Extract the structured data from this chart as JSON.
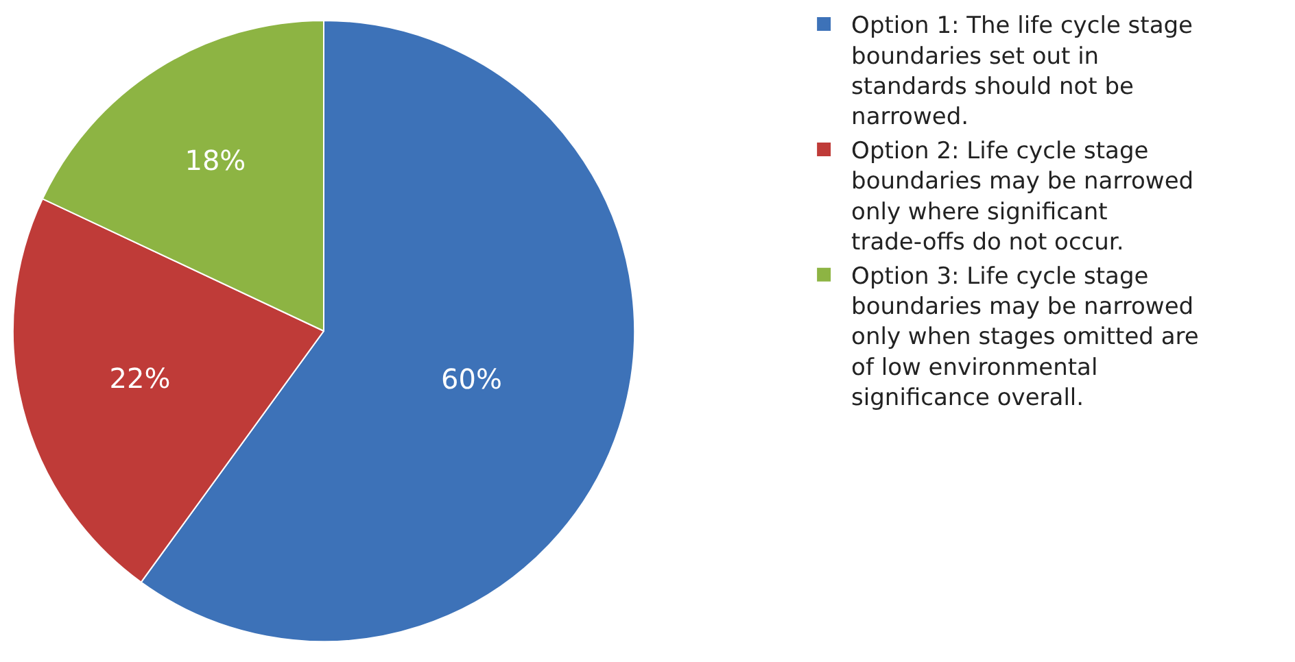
{
  "chart_data": {
    "type": "pie",
    "categories": [
      "Option 1: The life cycle stage boundaries set out in standards should not be narrowed.",
      "Option 2: Life cycle stage boundaries may be narrowed only where significant trade-offs do not occur.",
      "Option 3: Life cycle stage boundaries may be narrowed only when stages omitted are of low environmental significance overall."
    ],
    "values": [
      60,
      22,
      18
    ],
    "colors": [
      "#3d72b8",
      "#bf3b38",
      "#8db443"
    ],
    "value_labels": [
      "60%",
      "22%",
      "18%"
    ],
    "legend": "right"
  }
}
